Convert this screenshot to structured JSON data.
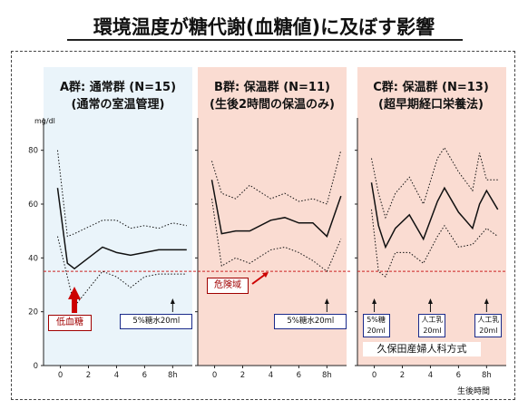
{
  "page": {
    "title": "環境温度が糖代謝(血糖値)に及ぼす影響",
    "y_unit": "mg/dl",
    "x_axis_caption": "生後時間",
    "threshold_label_low": "低血糖",
    "threshold_label_danger": "危険域",
    "method_label": "久保田産婦人科方式"
  },
  "colors": {
    "panel_a_bg": "#eaf4fa",
    "panel_b_bg": "#fadcd2",
    "panel_c_bg": "#fadcd2",
    "threshold": "#cc2222",
    "arrow_red": "#cc0000",
    "box_border": "#1a2a8a"
  },
  "chart_data": [
    {
      "type": "line",
      "title": "A群: 通常群 (N=15)",
      "subtitle": "(通常の室温管理)",
      "x": [
        -0.2,
        0.5,
        1,
        3,
        4,
        5,
        6,
        7,
        8,
        9
      ],
      "series": [
        {
          "style": "mean",
          "values": [
            66,
            38,
            36,
            44,
            42,
            41,
            42,
            43,
            43,
            43
          ]
        },
        {
          "style": "upper",
          "values": [
            80,
            48,
            49,
            54,
            54,
            51,
            52,
            51,
            53,
            52
          ]
        },
        {
          "style": "lower",
          "values": [
            48,
            33,
            22,
            35,
            33,
            29,
            33,
            34,
            34,
            34
          ]
        }
      ],
      "threshold": 35,
      "ylim": [
        0,
        90
      ],
      "xlim": [
        -1.2,
        9.4
      ],
      "yticks": [
        0,
        20,
        40,
        60,
        80
      ],
      "xticks": [
        "0",
        "2",
        "4",
        "6",
        "8h"
      ],
      "markers": [
        {
          "x": 8,
          "label": "5%糖水20ml"
        }
      ]
    },
    {
      "type": "line",
      "title": "B群: 保温群 (N=11)",
      "subtitle": "(生後2時間の保温のみ)",
      "x": [
        -0.2,
        0.5,
        1.5,
        2.5,
        4,
        5,
        6,
        7,
        8,
        9
      ],
      "series": [
        {
          "style": "mean",
          "values": [
            69,
            49,
            50,
            50,
            54,
            55,
            53,
            53,
            48,
            63
          ]
        },
        {
          "style": "upper",
          "values": [
            76,
            64,
            62,
            67,
            62,
            64,
            61,
            62,
            60,
            80
          ]
        },
        {
          "style": "lower",
          "values": [
            62,
            37,
            40,
            38,
            43,
            44,
            42,
            39,
            35,
            47
          ]
        }
      ],
      "threshold": 35,
      "ylim": [
        0,
        90
      ],
      "xlim": [
        -1.2,
        9.4
      ],
      "yticks": [
        0,
        20,
        40,
        60,
        80
      ],
      "xticks": [
        "0",
        "2",
        "4",
        "6",
        "8h"
      ],
      "markers": [
        {
          "x": 8,
          "label": "5%糖水20ml"
        }
      ]
    },
    {
      "type": "line",
      "title": "C群: 保温群 (N=13)",
      "subtitle": "(超早期経口栄養法)",
      "x": [
        -0.2,
        0.3,
        0.8,
        1.5,
        2.5,
        3.5,
        4.5,
        5,
        6,
        7,
        7.5,
        8,
        8.8
      ],
      "series": [
        {
          "style": "mean",
          "values": [
            68,
            52,
            44,
            51,
            56,
            47,
            61,
            66,
            57,
            51,
            60,
            65,
            58
          ]
        },
        {
          "style": "upper",
          "values": [
            77,
            64,
            55,
            64,
            70,
            60,
            77,
            81,
            72,
            65,
            79,
            69,
            69
          ]
        },
        {
          "style": "lower",
          "values": [
            58,
            35,
            33,
            42,
            42,
            38,
            48,
            52,
            44,
            45,
            48,
            51,
            48
          ]
        }
      ],
      "threshold": 35,
      "ylim": [
        0,
        90
      ],
      "xlim": [
        -1.2,
        9.4
      ],
      "yticks": [
        0,
        20,
        40,
        60,
        80
      ],
      "xticks": [
        "0",
        "2",
        "4",
        "6",
        "8h"
      ],
      "markers": [
        {
          "x": 0,
          "label": "5%糖 20ml"
        },
        {
          "x": 4,
          "label": "人工乳 20ml"
        },
        {
          "x": 8,
          "label": "人工乳 20ml"
        }
      ]
    }
  ]
}
